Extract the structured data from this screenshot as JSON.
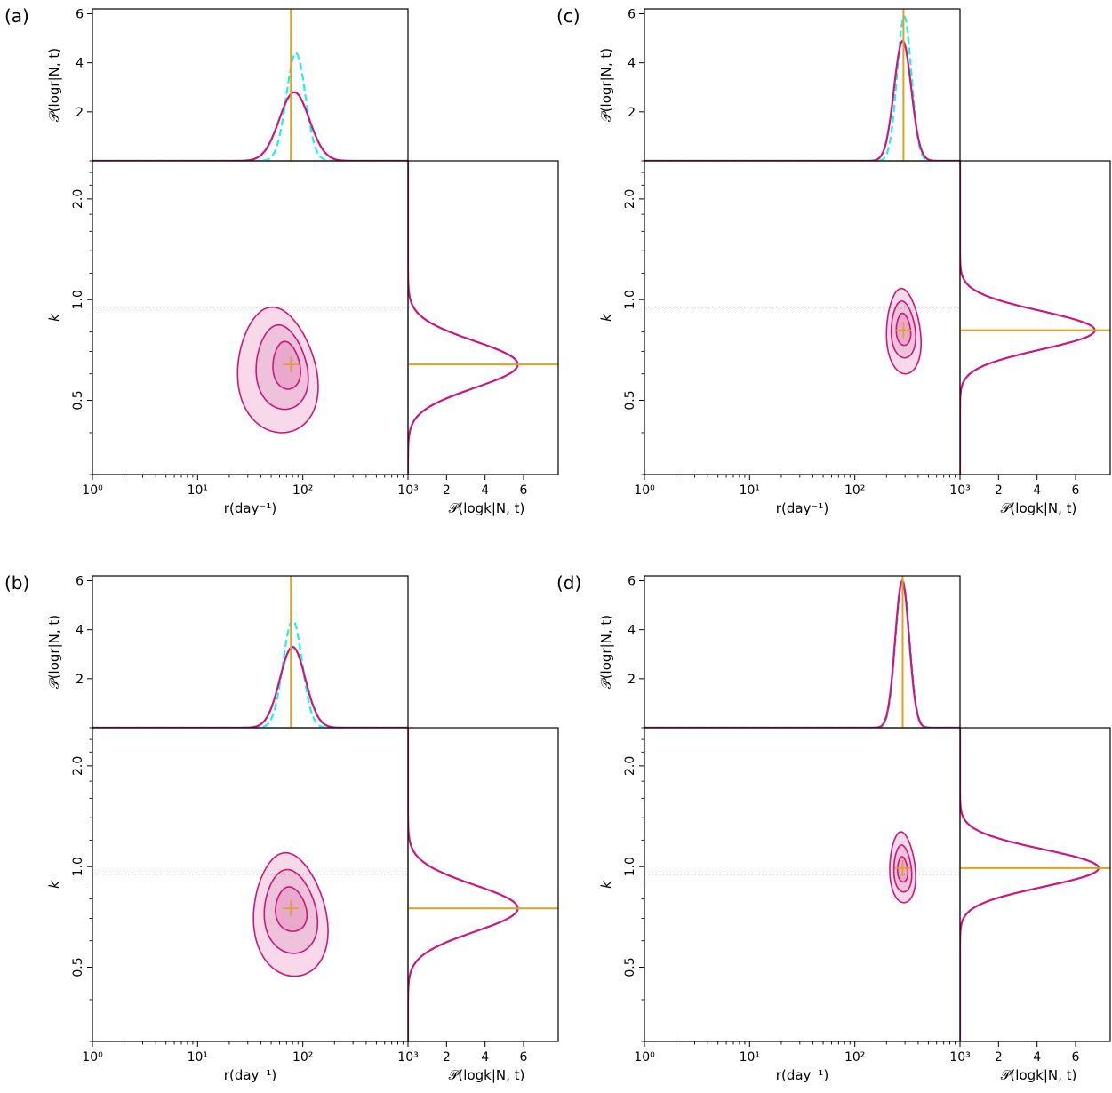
{
  "figure": {
    "top_ylabel": "𝒫(logr|N, t)",
    "side_xlabel": "𝒫(logk|N, t)",
    "main_ylabel": "k",
    "main_xlabel": "r(day⁻¹)"
  },
  "colors": {
    "posterior": "#c9177e",
    "fill_outer": "#f7d9ea",
    "fill_mid": "#efc2dc",
    "fill_inner": "#e9a9cd",
    "prior_dashed": "#22eeee",
    "estimate": "#e0a020",
    "reference_line": "#000000"
  },
  "chart_data": [
    {
      "type": "contour",
      "panel_label": "(a)",
      "x_scale": "log",
      "xlim": [
        1,
        1000
      ],
      "y_scale": "log",
      "ylim": [
        0.3,
        2.6
      ],
      "x_ticks": [
        "10⁰",
        "10¹",
        "10²",
        "10³"
      ],
      "y_ticks": [
        "0.5",
        "1.0",
        "2.0"
      ],
      "top_ylim": [
        0,
        6.2
      ],
      "top_yticks": [
        "2",
        "4",
        "6"
      ],
      "side_xlim": [
        0,
        7.8
      ],
      "side_xticks": [
        "2",
        "4",
        "6"
      ],
      "reference_k": 0.95,
      "estimate": {
        "r": 77,
        "k": 0.64
      },
      "top_marginal": {
        "peak_r": 83,
        "peak": 2.8,
        "prior_peak_r": 86,
        "prior_peak": 4.4
      },
      "side_marginal": {
        "peak_k": 0.64,
        "peak": 5.7
      },
      "contours": [
        {
          "level": "outer",
          "r_range": [
            24,
            135
          ],
          "k_range": [
            0.4,
            0.95
          ]
        },
        {
          "level": "middle",
          "r_range": [
            36,
            110
          ],
          "k_range": [
            0.47,
            0.84
          ]
        },
        {
          "level": "inner",
          "r_range": [
            52,
            94
          ],
          "k_range": [
            0.54,
            0.75
          ]
        }
      ]
    },
    {
      "type": "contour",
      "panel_label": "(b)",
      "x_scale": "log",
      "xlim": [
        1,
        1000
      ],
      "y_scale": "log",
      "ylim": [
        0.3,
        2.6
      ],
      "x_ticks": [
        "10⁰",
        "10¹",
        "10²",
        "10³"
      ],
      "y_ticks": [
        "0.5",
        "1.0",
        "2.0"
      ],
      "top_ylim": [
        0,
        6.2
      ],
      "top_yticks": [
        "2",
        "4",
        "6"
      ],
      "side_xlim": [
        0,
        7.8
      ],
      "side_xticks": [
        "2",
        "4",
        "6"
      ],
      "reference_k": 0.95,
      "estimate": {
        "r": 77,
        "k": 0.75
      },
      "top_marginal": {
        "peak_r": 80,
        "peak": 3.3,
        "prior_peak_r": 80,
        "prior_peak": 4.4
      },
      "side_marginal": {
        "peak_k": 0.75,
        "peak": 5.7
      },
      "contours": [
        {
          "level": "outer",
          "r_range": [
            34,
            168
          ],
          "k_range": [
            0.47,
            1.1
          ]
        },
        {
          "level": "middle",
          "r_range": [
            43,
            135
          ],
          "k_range": [
            0.55,
            0.98
          ]
        },
        {
          "level": "inner",
          "r_range": [
            55,
            108
          ],
          "k_range": [
            0.64,
            0.87
          ]
        }
      ]
    },
    {
      "type": "contour",
      "panel_label": "(c)",
      "x_scale": "log",
      "xlim": [
        1,
        1000
      ],
      "y_scale": "log",
      "ylim": [
        0.3,
        2.6
      ],
      "x_ticks": [
        "10⁰",
        "10¹",
        "10²",
        "10³"
      ],
      "y_ticks": [
        "0.5",
        "1.0",
        "2.0"
      ],
      "top_ylim": [
        0,
        6.2
      ],
      "top_yticks": [
        "2",
        "4",
        "6"
      ],
      "side_xlim": [
        0,
        7.8
      ],
      "side_xticks": [
        "2",
        "4",
        "6"
      ],
      "reference_k": 0.95,
      "estimate": {
        "r": 290,
        "k": 0.81
      },
      "top_marginal": {
        "peak_r": 285,
        "peak": 4.9,
        "prior_peak_r": 295,
        "prior_peak": 5.9
      },
      "side_marginal": {
        "peak_k": 0.81,
        "peak": 7.0
      },
      "contours": [
        {
          "level": "outer",
          "r_range": [
            200,
            420
          ],
          "k_range": [
            0.6,
            1.08
          ]
        },
        {
          "level": "middle",
          "r_range": [
            222,
            375
          ],
          "k_range": [
            0.67,
            0.99
          ]
        },
        {
          "level": "inner",
          "r_range": [
            248,
            338
          ],
          "k_range": [
            0.73,
            0.91
          ]
        }
      ]
    },
    {
      "type": "contour",
      "panel_label": "(d)",
      "x_scale": "log",
      "xlim": [
        1,
        1000
      ],
      "y_scale": "log",
      "ylim": [
        0.3,
        2.6
      ],
      "x_ticks": [
        "10⁰",
        "10¹",
        "10²",
        "10³"
      ],
      "y_ticks": [
        "0.5",
        "1.0",
        "2.0"
      ],
      "top_ylim": [
        0,
        6.2
      ],
      "top_yticks": [
        "2",
        "4",
        "6"
      ],
      "side_xlim": [
        0,
        7.8
      ],
      "side_xticks": [
        "2",
        "4",
        "6"
      ],
      "reference_k": 0.95,
      "estimate": {
        "r": 285,
        "k": 0.99
      },
      "top_marginal": {
        "peak_r": 282,
        "peak": 6.0,
        "prior_peak_r": 285,
        "prior_peak": 6.0
      },
      "side_marginal": {
        "peak_k": 0.99,
        "peak": 7.2
      },
      "contours": [
        {
          "level": "outer",
          "r_range": [
            215,
            375
          ],
          "k_range": [
            0.78,
            1.27
          ]
        },
        {
          "level": "middle",
          "r_range": [
            235,
            345
          ],
          "k_range": [
            0.84,
            1.16
          ]
        },
        {
          "level": "inner",
          "r_range": [
            255,
            318
          ],
          "k_range": [
            0.9,
            1.07
          ]
        }
      ]
    }
  ]
}
